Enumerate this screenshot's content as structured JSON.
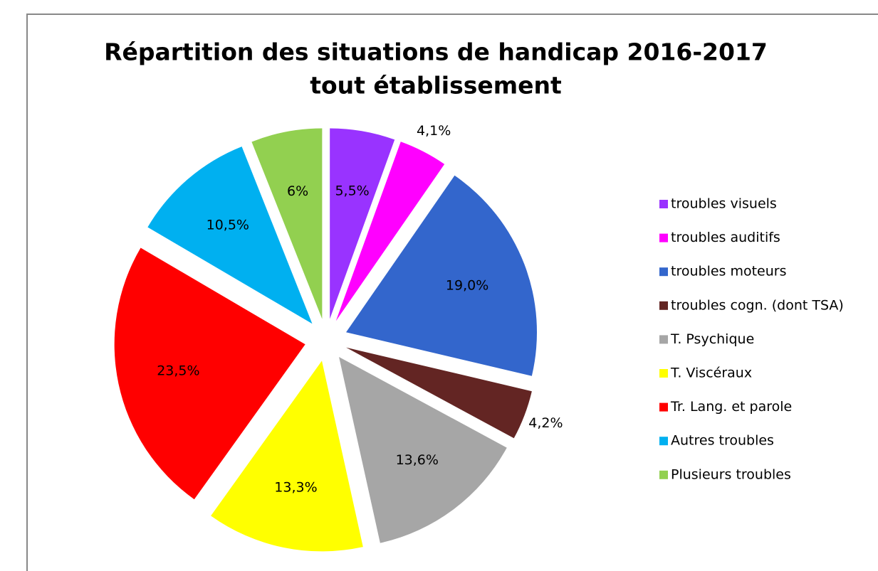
{
  "chart_data": {
    "type": "pie",
    "title": [
      "Répartition des situations de handicap 2016-2017",
      "tout établissement"
    ],
    "categories": [
      "troubles visuels",
      "troubles auditifs",
      "troubles moteurs",
      "troubles cogn. (dont TSA)",
      "T. Psychique",
      "T. Viscéraux",
      "Tr. Lang. et parole",
      "Autres troubles",
      "Plusieurs troubles"
    ],
    "values": [
      5.5,
      4.1,
      19.0,
      4.2,
      13.6,
      13.3,
      23.5,
      10.5,
      6
    ],
    "value_labels": [
      "5,5%",
      "4,1%",
      "19,0%",
      "4,2%",
      "13,6%",
      "13,3%",
      "23,5%",
      "10,5%",
      "6%"
    ],
    "colors": [
      "#9933ff",
      "#ff00ff",
      "#3366cc",
      "#632523",
      "#a6a6a6",
      "#ffff00",
      "#ff0000",
      "#00b0f0",
      "#92d050"
    ],
    "legend": "right"
  }
}
